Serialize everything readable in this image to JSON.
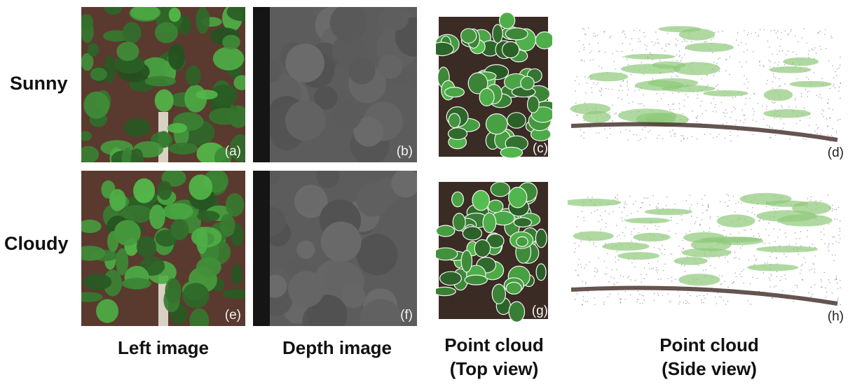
{
  "rows": [
    {
      "label": "Sunny"
    },
    {
      "label": "Cloudy"
    }
  ],
  "columns": [
    {
      "line1": "Left image",
      "line2": ""
    },
    {
      "line1": "Depth image",
      "line2": ""
    },
    {
      "line1": "Point cloud",
      "line2": "(Top view)"
    },
    {
      "line1": "Point cloud",
      "line2": "(Side view)"
    }
  ],
  "panels": {
    "a": "(a)",
    "b": "(b)",
    "c": "(c)",
    "d": "(d)",
    "e": "(e)",
    "f": "(f)",
    "g": "(g)",
    "h": "(h)"
  },
  "colors": {
    "leaf": "#3f8a3a",
    "leaf_light": "#8ec97a",
    "soil": "#5a3a2e",
    "depth_gray": "#5c5c5c"
  }
}
